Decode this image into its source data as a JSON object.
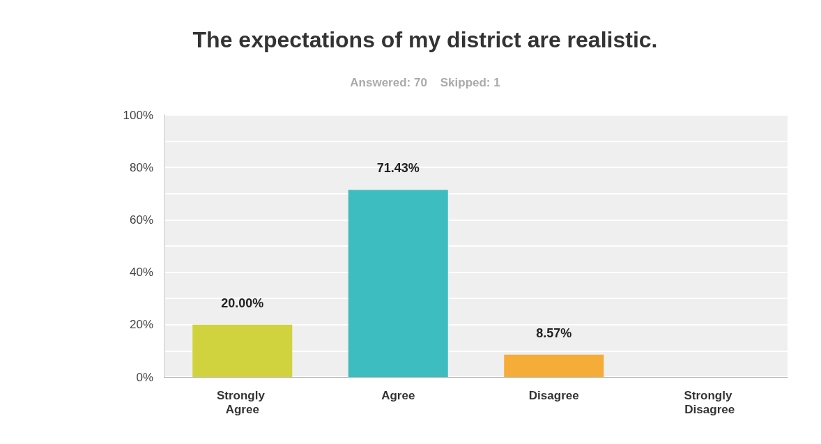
{
  "chart_data": {
    "type": "bar",
    "title": "The expectations of my district are realistic.",
    "subtitle": "Answered: 70    Skipped: 1",
    "categories": [
      "Strongly Agree",
      "Agree",
      "Disagree",
      "Strongly Disagree"
    ],
    "values": [
      20,
      71.43,
      8.57,
      0
    ],
    "colors": [
      "#d0d33e",
      "#3dbdbf",
      "#f5ac38",
      "#8e6fb5"
    ],
    "value_labels": [
      "20.00%",
      "71.43%",
      "8.57%",
      null
    ],
    "ylim": [
      0,
      100
    ],
    "yticks": [
      {
        "value": 0,
        "label": "0%"
      },
      {
        "value": 10,
        "label": null
      },
      {
        "value": 20,
        "label": "20%"
      },
      {
        "value": 30,
        "label": null
      },
      {
        "value": 40,
        "label": "40%"
      },
      {
        "value": 50,
        "label": null
      },
      {
        "value": 60,
        "label": "60%"
      },
      {
        "value": 70,
        "label": null
      },
      {
        "value": 80,
        "label": "80%"
      },
      {
        "value": 90,
        "label": null
      },
      {
        "value": 100,
        "label": "100%"
      }
    ],
    "grid": true
  }
}
